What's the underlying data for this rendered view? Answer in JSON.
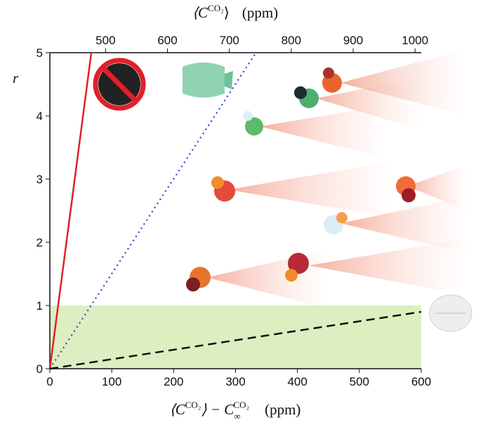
{
  "chart_data": {
    "type": "line",
    "x_label": {
      "open": "⟨C",
      "sup": "CO₂",
      "mid": "⟩ − C",
      "sub": "∞",
      "sup2": "CO₂",
      "unit": "(ppm)"
    },
    "x2_label": {
      "open": "⟨C",
      "sup": "CO₂",
      "close": "⟩",
      "unit": "(ppm)"
    },
    "y_label": "r",
    "xlim": [
      0,
      600
    ],
    "xticks": [
      0,
      100,
      200,
      300,
      400,
      500,
      600
    ],
    "x2lim": [
      410,
      1010
    ],
    "x2ticks": [
      500,
      600,
      700,
      800,
      900,
      1000
    ],
    "ylim": [
      0,
      5
    ],
    "yticks": [
      0,
      1,
      2,
      3,
      4,
      5
    ],
    "shaded_region": {
      "y": [
        0,
        1
      ],
      "color": "#dcefc0"
    },
    "series": [
      {
        "x": [
          0,
          67
        ],
        "values": [
          0,
          5
        ],
        "color": "#e0202a",
        "style": "solid"
      },
      {
        "x": [
          0,
          333
        ],
        "values": [
          0,
          5
        ],
        "color": "#3a3acc",
        "style": "dotted"
      },
      {
        "x": [
          0,
          600
        ],
        "values": [
          0,
          0.9
        ],
        "color": "#111111",
        "style": "dashed"
      }
    ]
  }
}
